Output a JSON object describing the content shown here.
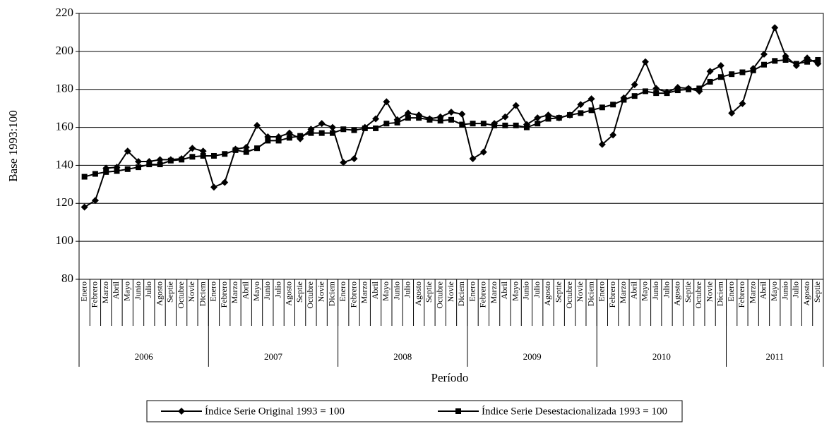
{
  "chart_data": {
    "type": "line",
    "y_label": "Base 1993:100",
    "x_label": "Período",
    "categories": [
      "Enero",
      "Febrero",
      "Marzo",
      "Abril",
      "Mayo",
      "Junio",
      "Julio",
      "Agosto",
      "Septie",
      "Octubre",
      "Novie",
      "Diciem",
      "Enero",
      "Febrero",
      "Marzo",
      "Abril",
      "Mayo",
      "Junio",
      "Julio",
      "Agosto",
      "Septie",
      "Octubre",
      "Novie",
      "Diciem",
      "Enero",
      "Febrero",
      "Marzo",
      "Abril",
      "Mayo",
      "Junio",
      "Julio",
      "Agosto",
      "Septie",
      "Octubre",
      "Novie",
      "Diciem",
      "Enero",
      "Febrero",
      "Marzo",
      "Abril",
      "Mayo",
      "Junio",
      "Julio",
      "Agosto",
      "Septie",
      "Octubre",
      "Novie",
      "Diciem",
      "Enero",
      "Febrero",
      "Marzo",
      "Abril",
      "Mayo",
      "Junio",
      "Julio",
      "Agosto",
      "Septie",
      "Octubre",
      "Novie",
      "Diciem",
      "Enero",
      "Febrero",
      "Marzo",
      "Abril",
      "Mayo",
      "Junio",
      "Julio",
      "Agosto",
      "Septie"
    ],
    "year_groups": [
      {
        "name": "2006",
        "months": 12
      },
      {
        "name": "2007",
        "months": 12
      },
      {
        "name": "2008",
        "months": 12
      },
      {
        "name": "2009",
        "months": 12
      },
      {
        "name": "2010",
        "months": 12
      },
      {
        "name": "2011",
        "months": 9
      }
    ],
    "series": [
      {
        "name": "Índice Serie Original 1993 = 100",
        "color": "#000000",
        "marker": "diamond",
        "values": [
          118,
          121.5,
          138.5,
          139,
          147.5,
          142,
          142,
          143,
          143,
          143.5,
          149,
          147.5,
          128.5,
          131,
          148.5,
          149.5,
          161,
          155,
          155,
          157,
          154,
          159,
          162,
          160,
          141.5,
          143.5,
          160,
          164.5,
          173.5,
          164,
          167.5,
          166.5,
          164.5,
          165.5,
          168,
          167,
          143.5,
          147,
          162,
          165.5,
          171.5,
          161.5,
          165,
          166.5,
          165,
          166.5,
          172,
          175,
          151,
          156,
          175.5,
          182.5,
          194.5,
          180.5,
          178.5,
          181,
          180.5,
          179,
          189.5,
          192.5,
          167.5,
          172.5,
          191,
          198.5,
          212.5,
          197.5,
          192.5,
          196.5,
          193.5
        ]
      },
      {
        "name": "Índice Serie Desestacionalizada 1993 = 100",
        "color": "#000000",
        "marker": "square",
        "values": [
          134,
          135.5,
          136.5,
          137,
          138,
          139,
          140.5,
          140.5,
          142.5,
          143,
          144.5,
          145,
          145,
          146,
          148,
          147,
          149,
          153,
          153,
          154.5,
          155.5,
          157,
          157,
          157,
          159,
          158.5,
          159.5,
          159.5,
          162,
          162.5,
          165,
          165,
          164,
          163.5,
          164,
          161.5,
          162,
          162,
          161,
          161,
          161,
          160,
          162,
          164.5,
          165,
          166.5,
          167.5,
          169,
          170.5,
          172,
          174.5,
          176.5,
          179,
          178,
          178,
          179.5,
          180,
          180.5,
          184,
          186.5,
          188,
          189,
          190,
          193,
          195,
          195.5,
          193.5,
          194.5,
          195.5
        ]
      }
    ],
    "ylim": [
      80,
      220
    ],
    "yticks": [
      80,
      100,
      120,
      140,
      160,
      180,
      200,
      220
    ],
    "grid": true,
    "legend": "bottom"
  }
}
